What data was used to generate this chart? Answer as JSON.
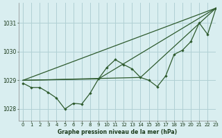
{
  "xlabel": "Graphe pression niveau de la mer (hPa)",
  "xlim": [
    -0.5,
    23
  ],
  "ylim": [
    1027.6,
    1031.7
  ],
  "yticks": [
    1028,
    1029,
    1030,
    1031
  ],
  "xticks": [
    0,
    1,
    2,
    3,
    4,
    5,
    6,
    7,
    8,
    9,
    10,
    11,
    12,
    13,
    14,
    15,
    16,
    17,
    18,
    19,
    20,
    21,
    22,
    23
  ],
  "background_color": "#d9eef0",
  "grid_color": "#b0d0d4",
  "line_color": "#2d5a2d",
  "line1_x": [
    0,
    1,
    2,
    3,
    4,
    5,
    6,
    7,
    8,
    9,
    10,
    11,
    12,
    13,
    14,
    15,
    16,
    17,
    18,
    19,
    20,
    21,
    22,
    23
  ],
  "line1_y": [
    1028.9,
    1028.75,
    1028.75,
    1028.58,
    1028.38,
    1028.0,
    1028.2,
    1028.17,
    1028.55,
    1029.05,
    1029.45,
    1029.72,
    1029.55,
    1029.4,
    1029.1,
    1029.0,
    1028.78,
    1029.15,
    1029.9,
    1030.05,
    1030.35,
    1031.0,
    1030.6,
    1031.52
  ],
  "line2_x": [
    0,
    23
  ],
  "line2_y": [
    1029.0,
    1031.52
  ],
  "line3_x": [
    0,
    9,
    23
  ],
  "line3_y": [
    1029.0,
    1029.05,
    1031.52
  ],
  "line4_x": [
    0,
    14,
    23
  ],
  "line4_y": [
    1029.0,
    1029.1,
    1031.52
  ]
}
